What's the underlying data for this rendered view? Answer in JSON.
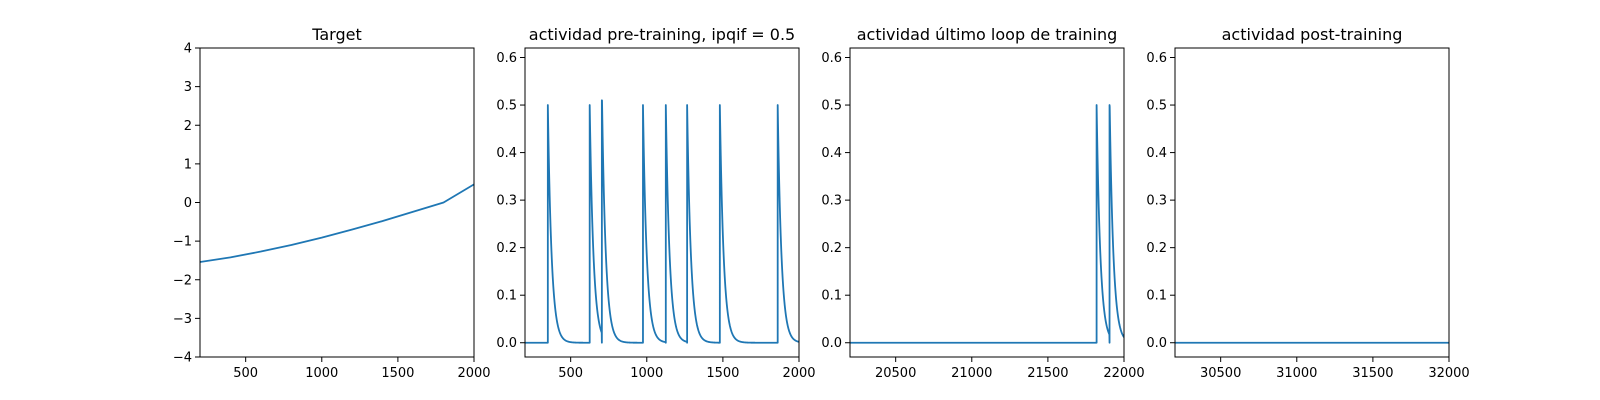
{
  "style": {
    "line_color": "#1f77b4",
    "background": "#ffffff"
  },
  "chart_data": [
    {
      "type": "line",
      "title": "Target",
      "xlabel": "",
      "ylabel": "",
      "xlim": [
        200,
        2000
      ],
      "ylim": [
        -4,
        4
      ],
      "xticks": [
        500,
        1000,
        1500,
        2000
      ],
      "yticks": [
        -4,
        -3,
        -2,
        -1,
        0,
        1,
        2,
        3,
        4
      ],
      "series": [
        {
          "x": [
            200,
            400,
            600,
            800,
            1000,
            1200,
            1400,
            1600,
            1800,
            2000
          ],
          "y": [
            -1.54,
            -1.42,
            -1.27,
            -1.1,
            -0.91,
            -0.7,
            -0.48,
            -0.24,
            0.0,
            0.47
          ]
        }
      ]
    },
    {
      "type": "line",
      "title": "actividad pre-training, ipqif = 0.5",
      "xlabel": "",
      "ylabel": "",
      "xlim": [
        200,
        2000
      ],
      "ylim": [
        -0.03,
        0.62
      ],
      "xticks": [
        500,
        1000,
        1500,
        2000
      ],
      "yticks": [
        0.0,
        0.1,
        0.2,
        0.3,
        0.4,
        0.5,
        0.6
      ],
      "spikes": [
        {
          "t": 350,
          "peak": 0.5
        },
        {
          "t": 625,
          "peak": 0.5
        },
        {
          "t": 705,
          "peak": 0.51
        },
        {
          "t": 975,
          "peak": 0.5
        },
        {
          "t": 1125,
          "peak": 0.5
        },
        {
          "t": 1265,
          "peak": 0.5
        },
        {
          "t": 1480,
          "peak": 0.5
        },
        {
          "t": 1860,
          "peak": 0.5
        }
      ],
      "decay": 25
    },
    {
      "type": "line",
      "title": "actividad último loop de training",
      "xlabel": "",
      "ylabel": "",
      "xlim": [
        20200,
        22000
      ],
      "ylim": [
        -0.03,
        0.62
      ],
      "xticks": [
        20500,
        21000,
        21500,
        22000
      ],
      "yticks": [
        0.0,
        0.1,
        0.2,
        0.3,
        0.4,
        0.5,
        0.6
      ],
      "spikes": [
        {
          "t": 21820,
          "peak": 0.5
        },
        {
          "t": 21905,
          "peak": 0.5
        }
      ],
      "decay": 25
    },
    {
      "type": "line",
      "title": "actividad post-training",
      "xlabel": "",
      "ylabel": "",
      "xlim": [
        30200,
        32000
      ],
      "ylim": [
        -0.03,
        0.62
      ],
      "xticks": [
        30500,
        31000,
        31500,
        32000
      ],
      "yticks": [
        0.0,
        0.1,
        0.2,
        0.3,
        0.4,
        0.5,
        0.6
      ],
      "spikes": [],
      "decay": 25
    }
  ]
}
